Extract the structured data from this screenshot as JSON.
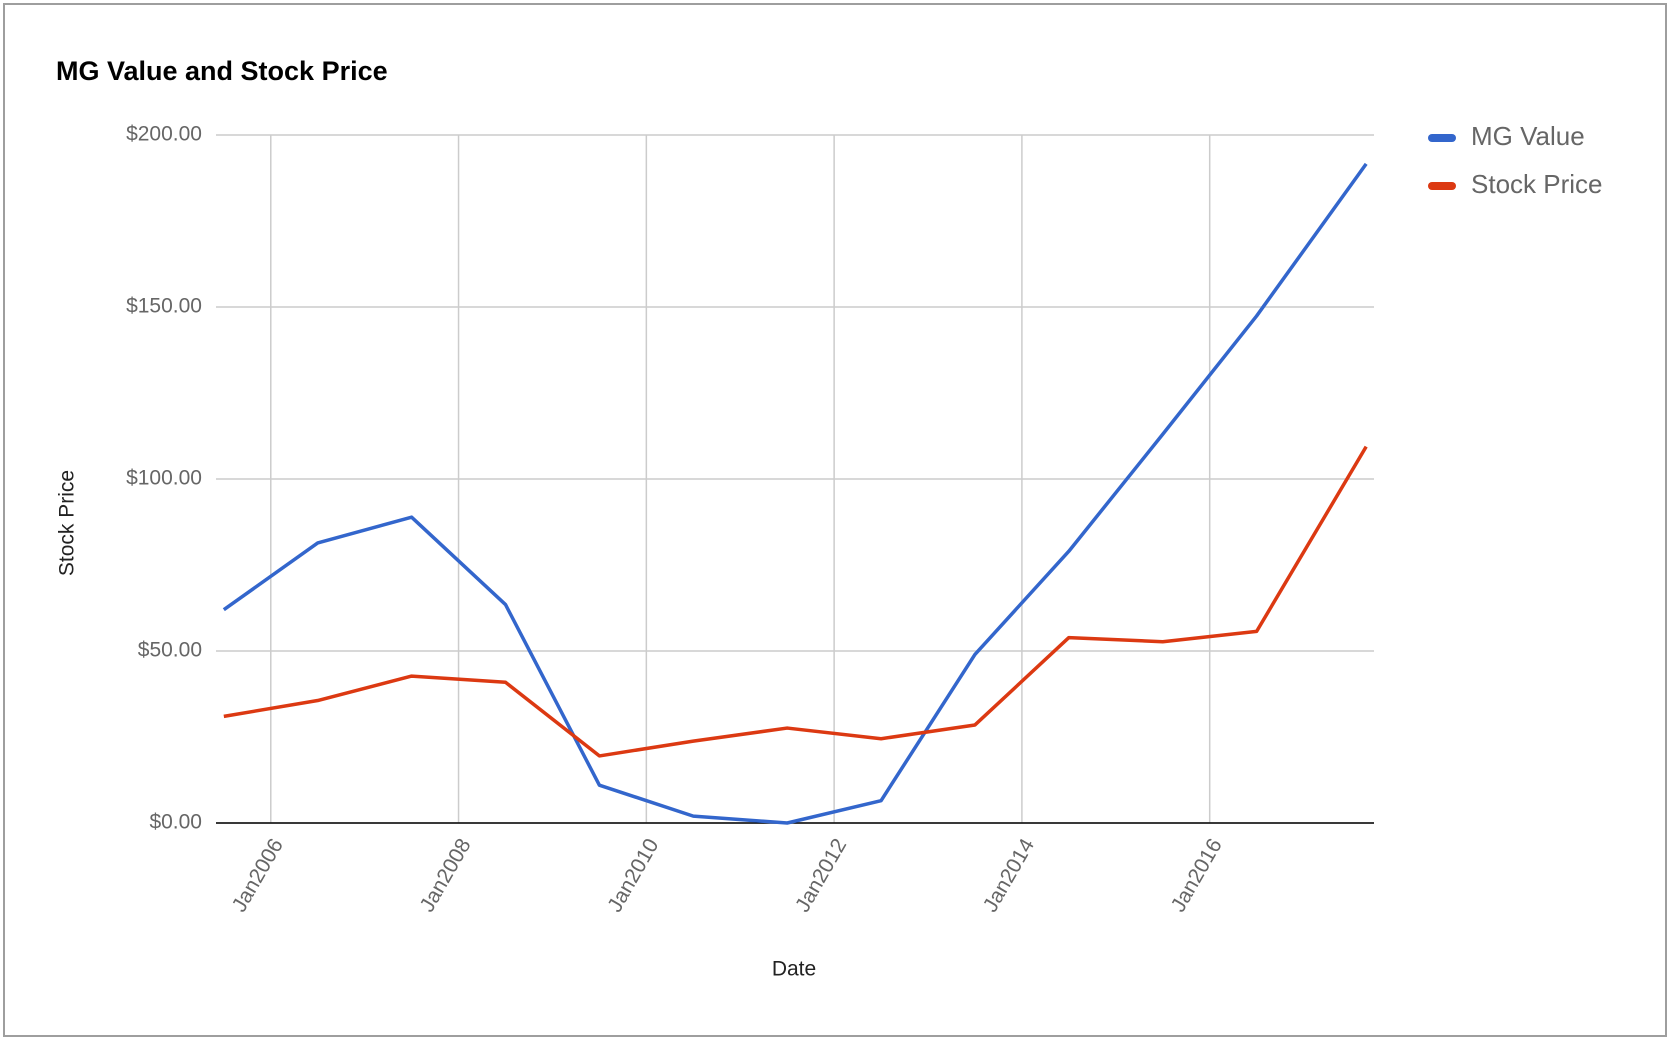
{
  "chart_data": {
    "type": "line",
    "title": "MG Value and Stock Price",
    "x_label": "Date",
    "y_label": "Stock Price",
    "x": [
      "2005-07",
      "2006-07",
      "2007-07",
      "2008-07",
      "2009-07",
      "2010-07",
      "2011-07",
      "2012-07",
      "2013-07",
      "2014-07",
      "2015-07",
      "2016-07",
      "2017-09"
    ],
    "series": [
      {
        "name": "MG Value",
        "color": "#3366cc",
        "values": [
          62,
          81.4,
          88.9,
          63.5,
          11,
          2,
          0,
          6.5,
          49,
          79,
          113,
          147.4,
          191.6
        ]
      },
      {
        "name": "Stock Price",
        "color": "#dc3912",
        "values": [
          31,
          35.6,
          42.7,
          40.9,
          19.5,
          23.8,
          27.6,
          24.5,
          28.5,
          53.9,
          52.7,
          55.7,
          109.4
        ]
      }
    ],
    "xlim": [
      "2005-06",
      "2017-10"
    ],
    "xticks": [
      {
        "value": "2006-01",
        "label": "Jan2006"
      },
      {
        "value": "2008-01",
        "label": "Jan2008"
      },
      {
        "value": "2010-01",
        "label": "Jan2010"
      },
      {
        "value": "2012-01",
        "label": "Jan2012"
      },
      {
        "value": "2014-01",
        "label": "Jan2014"
      },
      {
        "value": "2016-01",
        "label": "Jan2016"
      }
    ],
    "ylim": [
      0,
      200
    ],
    "yticks": [
      {
        "value": 0,
        "label": "$0.00"
      },
      {
        "value": 50,
        "label": "$50.00"
      },
      {
        "value": 100,
        "label": "$100.00"
      },
      {
        "value": 150,
        "label": "$150.00"
      },
      {
        "value": 200,
        "label": "$200.00"
      }
    ],
    "grid": true,
    "legend": "right"
  }
}
